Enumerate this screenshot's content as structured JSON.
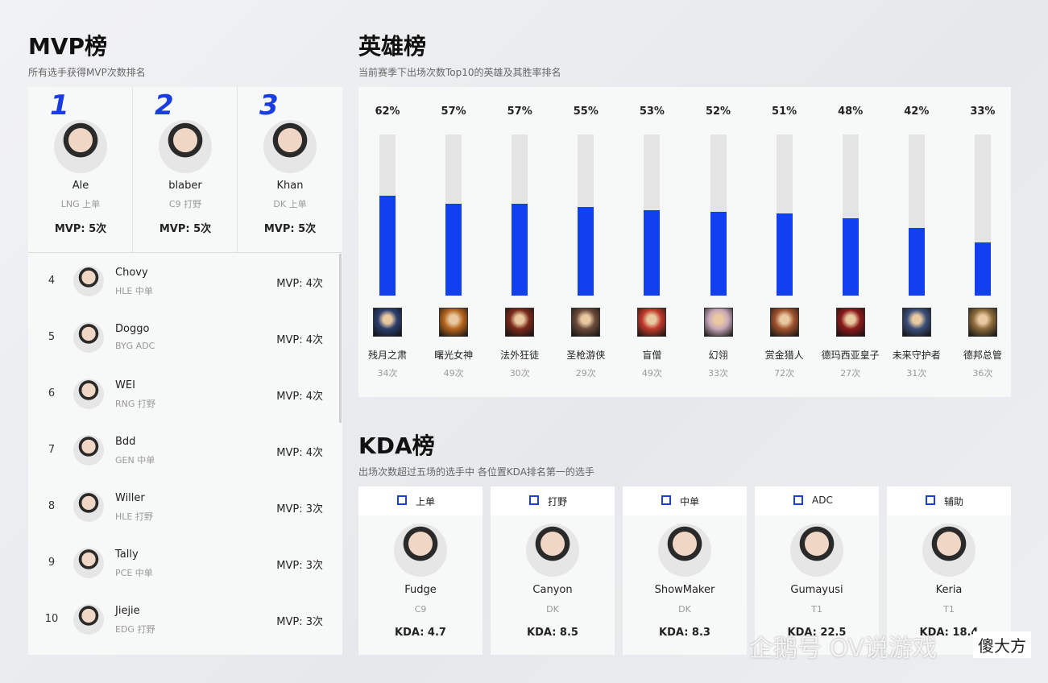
{
  "mvp": {
    "title": "MVP榜",
    "subtitle": "所有选手获得MVP次数排名",
    "players": [
      {
        "rank": "1",
        "name": "Ale",
        "team": "LNG 上单",
        "mvp": "MVP: 5次"
      },
      {
        "rank": "2",
        "name": "blaber",
        "team": "C9 打野",
        "mvp": "MVP: 5次"
      },
      {
        "rank": "3",
        "name": "Khan",
        "team": "DK 上单",
        "mvp": "MVP: 5次"
      },
      {
        "rank": "4",
        "name": "Chovy",
        "team": "HLE 中单",
        "mvp": "MVP: 4次"
      },
      {
        "rank": "5",
        "name": "Doggo",
        "team": "BYG ADC",
        "mvp": "MVP: 4次"
      },
      {
        "rank": "6",
        "name": "WEI",
        "team": "RNG 打野",
        "mvp": "MVP: 4次"
      },
      {
        "rank": "7",
        "name": "Bdd",
        "team": "GEN 中单",
        "mvp": "MVP: 4次"
      },
      {
        "rank": "8",
        "name": "Willer",
        "team": "HLE 打野",
        "mvp": "MVP: 3次"
      },
      {
        "rank": "9",
        "name": "Tally",
        "team": "PCE 中单",
        "mvp": "MVP: 3次"
      },
      {
        "rank": "10",
        "name": "Jiejie",
        "team": "EDG 打野",
        "mvp": "MVP: 3次"
      }
    ]
  },
  "chart_data": {
    "type": "bar",
    "title": "英雄榜",
    "subtitle": "当前赛季下出场次数Top10的英雄及其胜率排名",
    "categories": [
      "残月之肃",
      "曙光女神",
      "法外狂徒",
      "圣枪游侠",
      "盲僧",
      "幻翎",
      "赏金猎人",
      "德玛西亚皇子",
      "未来守护者",
      "德邦总管"
    ],
    "values": [
      62,
      57,
      57,
      55,
      53,
      52,
      51,
      48,
      42,
      33
    ],
    "value_labels": [
      "62%",
      "57%",
      "57%",
      "55%",
      "53%",
      "52%",
      "51%",
      "48%",
      "42%",
      "33%"
    ],
    "games": [
      "34次",
      "49次",
      "30次",
      "29次",
      "49次",
      "33次",
      "72次",
      "27次",
      "31次",
      "36次"
    ],
    "ylim": [
      0,
      100
    ],
    "color": "#1040f0",
    "track_color": "#e4e4e4"
  },
  "kda": {
    "title": "KDA榜",
    "subtitle": "出场次数超过五场的选手中 各位置KDA排名第一的选手",
    "cards": [
      {
        "position": "上单",
        "name": "Fudge",
        "team": "C9",
        "kda": "KDA: 4.7"
      },
      {
        "position": "打野",
        "name": "Canyon",
        "team": "DK",
        "kda": "KDA: 8.5"
      },
      {
        "position": "中单",
        "name": "ShowMaker",
        "team": "DK",
        "kda": "KDA: 8.3"
      },
      {
        "position": "ADC",
        "name": "Gumayusi",
        "team": "T1",
        "kda": "KDA: 22.5"
      },
      {
        "position": "辅助",
        "name": "Keria",
        "team": "T1",
        "kda": "KDA: 18.4"
      }
    ]
  },
  "watermark": {
    "text": "企鹅号 OV说游戏",
    "badge": "傻大方"
  }
}
